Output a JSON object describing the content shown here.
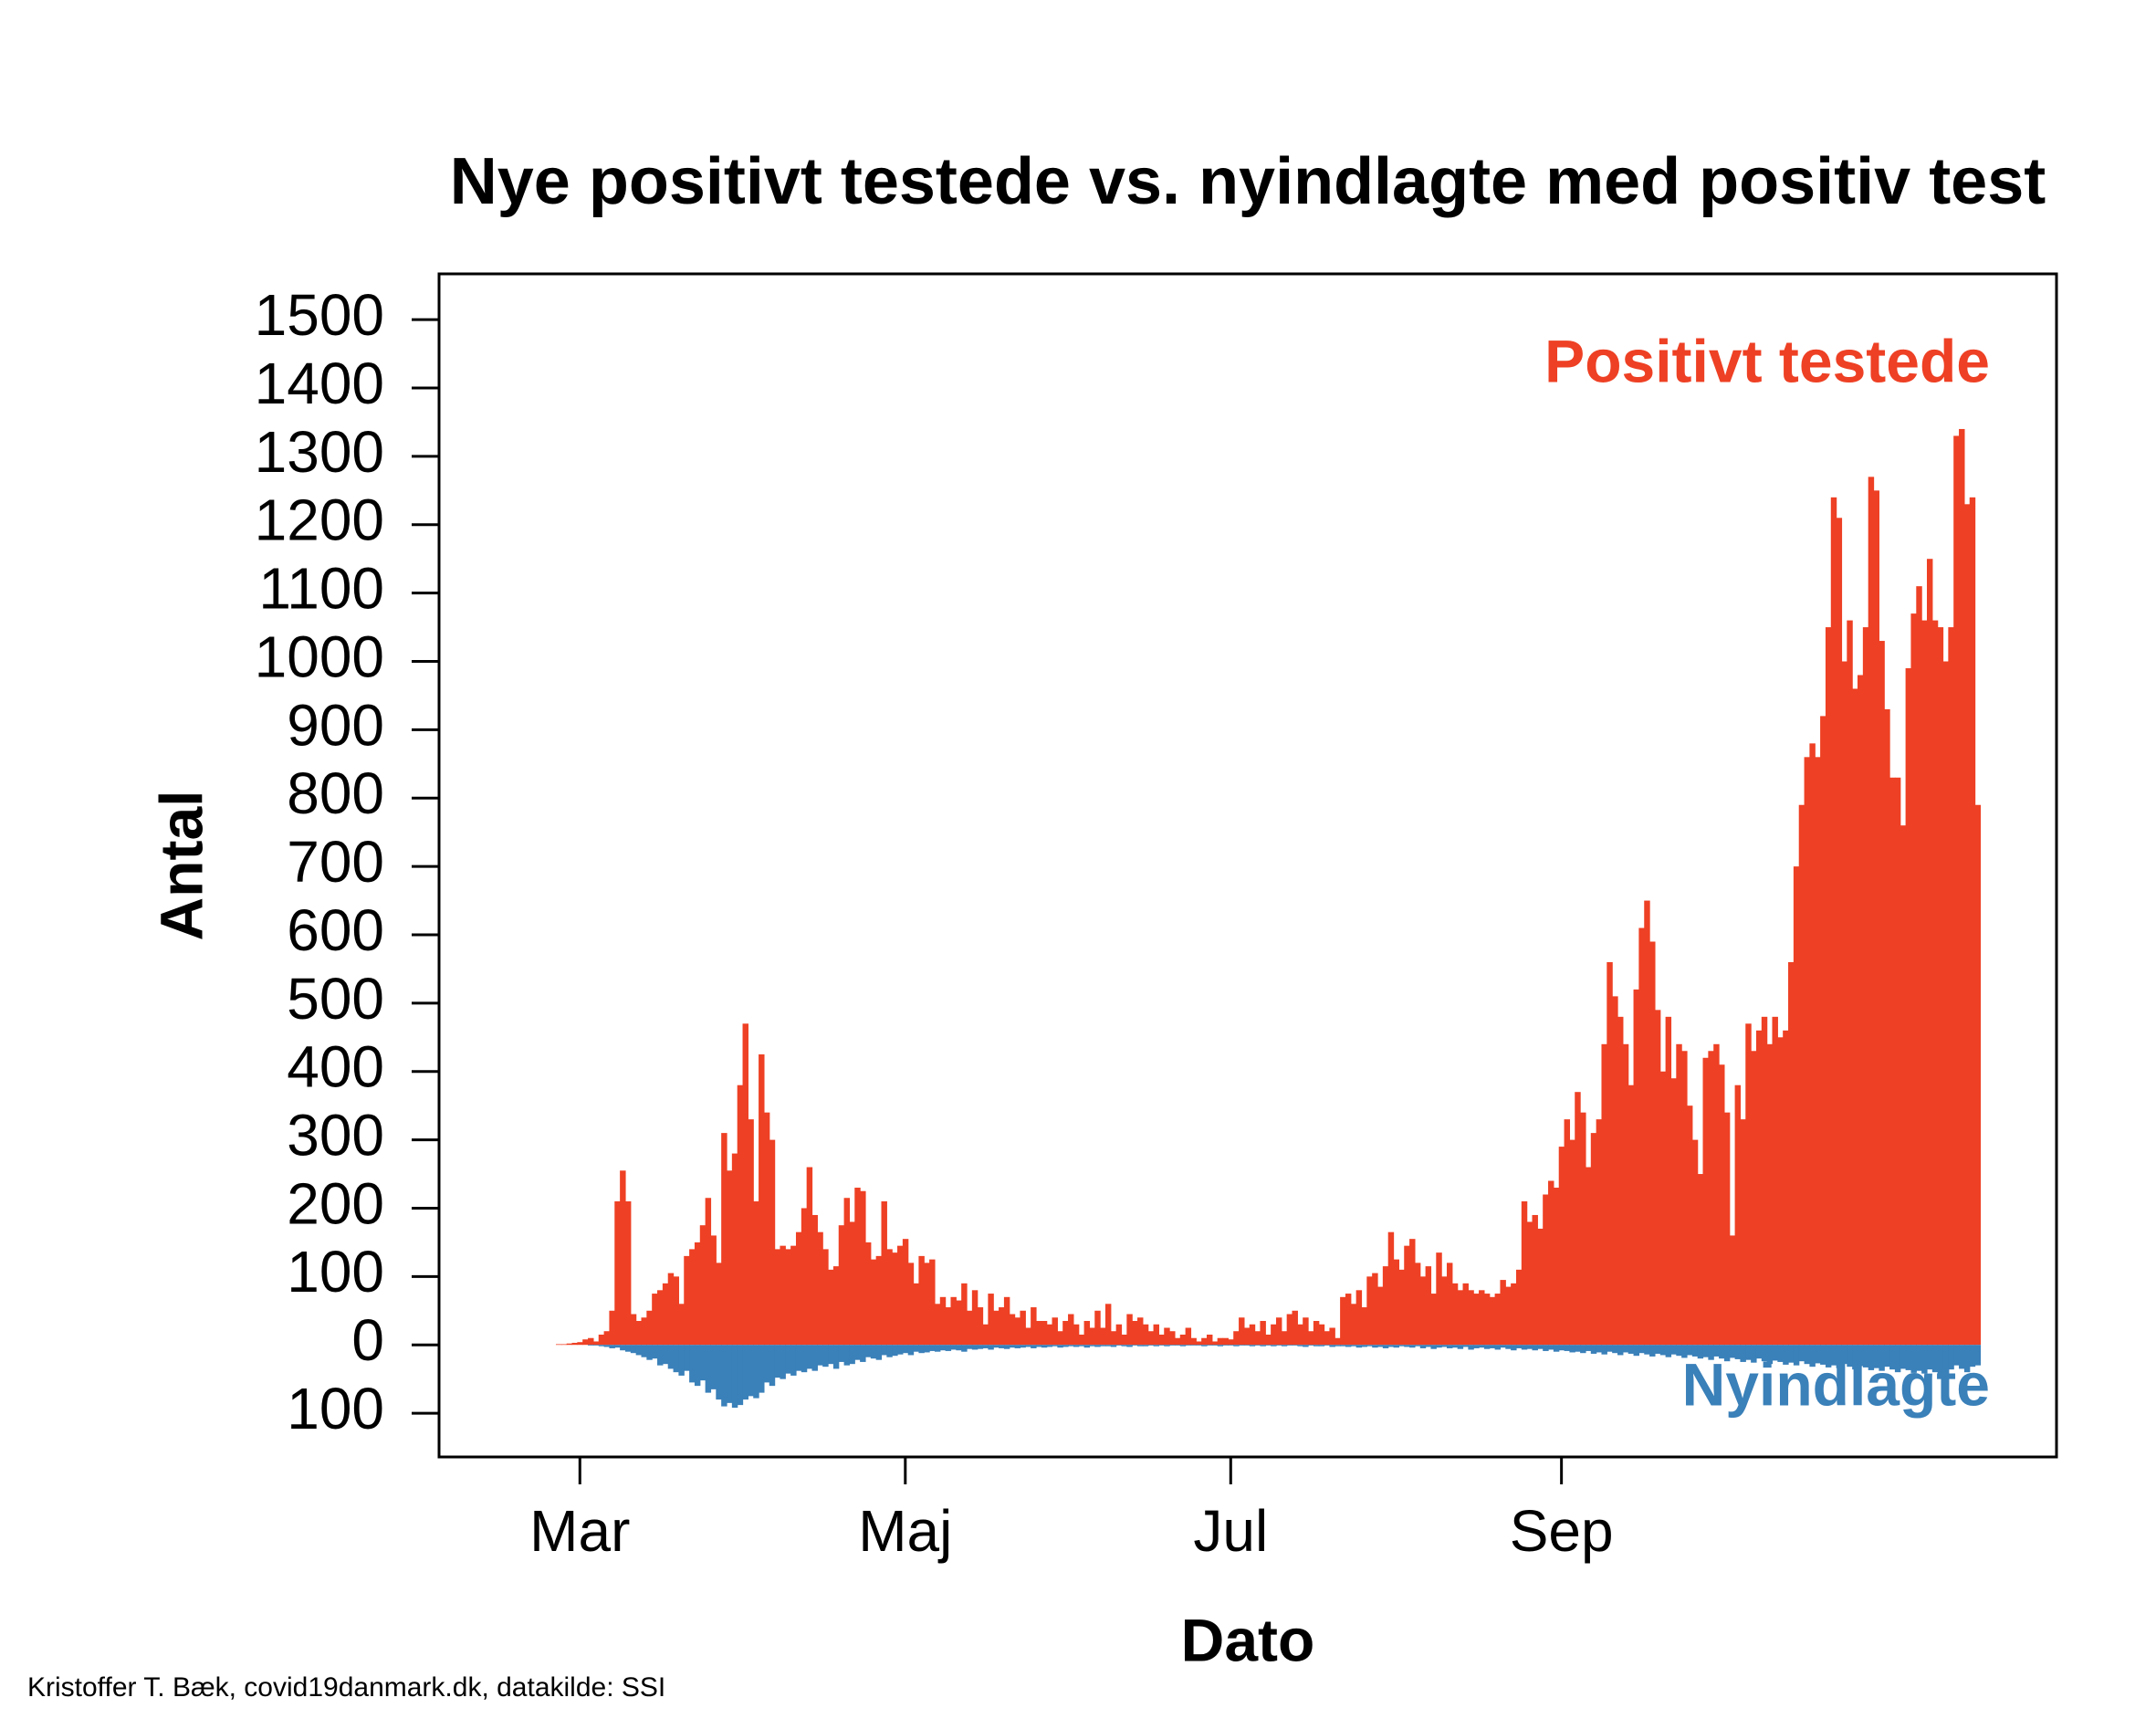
{
  "chart_data": {
    "type": "bar",
    "title": "Nye positivt testede vs. nyindlagte med positiv test",
    "x_label": "Dato",
    "y_label": "Antal",
    "caption": "Kristoffer T. Bæk, covid19danmark.dk, datakilde: SSI",
    "x": [
      57,
      58,
      59,
      60,
      61,
      62,
      63,
      64,
      65,
      66,
      67,
      68,
      69,
      70,
      71,
      72,
      73,
      74,
      75,
      76,
      77,
      78,
      79,
      80,
      81,
      82,
      83,
      84,
      85,
      86,
      87,
      88,
      89,
      90,
      91,
      92,
      93,
      94,
      95,
      96,
      97,
      98,
      99,
      100,
      101,
      102,
      103,
      104,
      105,
      106,
      107,
      108,
      109,
      110,
      111,
      112,
      113,
      114,
      115,
      116,
      117,
      118,
      119,
      120,
      121,
      122,
      123,
      124,
      125,
      126,
      127,
      128,
      129,
      130,
      131,
      132,
      133,
      134,
      135,
      136,
      137,
      138,
      139,
      140,
      141,
      142,
      143,
      144,
      145,
      146,
      147,
      148,
      149,
      150,
      151,
      152,
      153,
      154,
      155,
      156,
      157,
      158,
      159,
      160,
      161,
      162,
      163,
      164,
      165,
      166,
      167,
      168,
      169,
      170,
      171,
      172,
      173,
      174,
      175,
      176,
      177,
      178,
      179,
      180,
      181,
      182,
      183,
      184,
      185,
      186,
      187,
      188,
      189,
      190,
      191,
      192,
      193,
      194,
      195,
      196,
      197,
      198,
      199,
      200,
      201,
      202,
      203,
      204,
      205,
      206,
      207,
      208,
      209,
      210,
      211,
      212,
      213,
      214,
      215,
      216,
      217,
      218,
      219,
      220,
      221,
      222,
      223,
      224,
      225,
      226,
      227,
      228,
      229,
      230,
      231,
      232,
      233,
      234,
      235,
      236,
      237,
      238,
      239,
      240,
      241,
      242,
      243,
      244,
      245,
      246,
      247,
      248,
      249,
      250,
      251,
      252,
      253,
      254,
      255,
      256,
      257,
      258,
      259,
      260,
      261,
      262,
      263,
      264,
      265,
      266,
      267,
      268,
      269,
      270,
      271,
      272,
      273,
      274,
      275,
      276,
      277,
      278,
      279,
      280,
      281,
      282,
      283,
      284,
      285,
      286,
      287,
      288,
      289,
      290,
      291,
      292,
      293,
      294,
      295,
      296,
      297,
      298,
      299,
      300,
      301,
      302,
      303,
      304,
      305,
      306,
      307,
      308,
      309,
      310,
      311,
      312,
      313,
      314,
      315,
      316,
      317,
      318,
      319,
      320,
      321,
      322,
      323
    ],
    "series": [
      {
        "name": "Positivt testede",
        "color": "#ee4024",
        "values": [
          1,
          1,
          2,
          3,
          4,
          8,
          10,
          5,
          15,
          20,
          50,
          210,
          255,
          210,
          45,
          35,
          40,
          50,
          75,
          80,
          90,
          105,
          100,
          60,
          130,
          140,
          150,
          175,
          215,
          160,
          120,
          310,
          255,
          280,
          380,
          470,
          330,
          210,
          425,
          340,
          300,
          140,
          145,
          140,
          145,
          165,
          200,
          260,
          190,
          165,
          140,
          110,
          115,
          175,
          215,
          180,
          230,
          225,
          150,
          125,
          130,
          210,
          140,
          135,
          145,
          155,
          120,
          90,
          130,
          120,
          125,
          60,
          70,
          55,
          70,
          65,
          90,
          50,
          80,
          55,
          30,
          75,
          50,
          55,
          70,
          45,
          40,
          50,
          25,
          55,
          35,
          35,
          30,
          40,
          20,
          35,
          45,
          30,
          15,
          35,
          25,
          50,
          25,
          60,
          20,
          30,
          15,
          45,
          35,
          40,
          30,
          20,
          30,
          15,
          25,
          20,
          10,
          15,
          25,
          10,
          5,
          10,
          15,
          5,
          10,
          10,
          8,
          20,
          40,
          25,
          30,
          20,
          35,
          15,
          30,
          40,
          20,
          45,
          50,
          30,
          40,
          20,
          35,
          30,
          20,
          25,
          10,
          70,
          75,
          60,
          80,
          55,
          100,
          105,
          85,
          115,
          165,
          125,
          110,
          145,
          155,
          120,
          100,
          115,
          75,
          135,
          100,
          120,
          90,
          80,
          90,
          80,
          75,
          80,
          75,
          70,
          75,
          95,
          85,
          90,
          110,
          210,
          180,
          190,
          170,
          220,
          240,
          230,
          290,
          330,
          300,
          370,
          340,
          260,
          310,
          330,
          440,
          560,
          510,
          480,
          440,
          380,
          520,
          610,
          650,
          590,
          490,
          400,
          480,
          390,
          440,
          430,
          350,
          300,
          250,
          420,
          430,
          440,
          410,
          340,
          160,
          380,
          330,
          470,
          430,
          460,
          480,
          440,
          480,
          450,
          460,
          560,
          700,
          790,
          860,
          880,
          860,
          920,
          1050,
          1240,
          1210,
          1000,
          1060,
          960,
          980,
          1050,
          1270,
          1250,
          1030,
          930,
          830,
          830,
          760,
          990,
          1070,
          1110,
          1060,
          1150,
          1060,
          1050,
          1000,
          1050,
          1330,
          1340,
          1230,
          1240,
          790
        ]
      },
      {
        "name": "Nyindlagte",
        "color": "#3a80b9",
        "values": [
          0,
          0,
          0,
          0,
          0,
          0,
          -1,
          -1,
          -2,
          -3,
          -5,
          -4,
          -8,
          -10,
          -12,
          -15,
          -18,
          -22,
          -20,
          -30,
          -28,
          -35,
          -40,
          -45,
          -38,
          -55,
          -60,
          -52,
          -70,
          -65,
          -80,
          -90,
          -85,
          -92,
          -88,
          -80,
          -75,
          -78,
          -70,
          -55,
          -60,
          -48,
          -50,
          -42,
          -45,
          -38,
          -40,
          -35,
          -38,
          -30,
          -32,
          -28,
          -35,
          -25,
          -30,
          -28,
          -22,
          -25,
          -18,
          -20,
          -22,
          -15,
          -18,
          -16,
          -14,
          -12,
          -15,
          -10,
          -12,
          -11,
          -9,
          -10,
          -8,
          -9,
          -7,
          -8,
          -10,
          -6,
          -7,
          -6,
          -5,
          -7,
          -4,
          -5,
          -6,
          -4,
          -5,
          -4,
          -3,
          -5,
          -3,
          -4,
          -3,
          -2,
          -4,
          -3,
          -2,
          -3,
          -2,
          -4,
          -2,
          -3,
          -2,
          -2,
          -3,
          -1,
          -2,
          -3,
          -1,
          -2,
          -2,
          -1,
          -2,
          -1,
          -2,
          -1,
          -1,
          -2,
          -1,
          -1,
          -1,
          -2,
          -1,
          -1,
          -2,
          -1,
          -1,
          -2,
          -1,
          -1,
          -2,
          -1,
          -2,
          -1,
          -2,
          -1,
          -2,
          -1,
          -1,
          -2,
          -3,
          -1,
          -2,
          -2,
          -1,
          -3,
          -2,
          -2,
          -3,
          -2,
          -4,
          -3,
          -2,
          -4,
          -3,
          -5,
          -3,
          -4,
          -2,
          -3,
          -4,
          -2,
          -5,
          -3,
          -6,
          -4,
          -3,
          -5,
          -4,
          -6,
          -3,
          -7,
          -5,
          -4,
          -6,
          -5,
          -7,
          -4,
          -6,
          -8,
          -5,
          -7,
          -6,
          -8,
          -6,
          -9,
          -7,
          -10,
          -8,
          -9,
          -11,
          -10,
          -12,
          -9,
          -13,
          -11,
          -14,
          -10,
          -12,
          -15,
          -11,
          -13,
          -16,
          -12,
          -14,
          -17,
          -13,
          -15,
          -18,
          -14,
          -16,
          -19,
          -15,
          -17,
          -20,
          -18,
          -22,
          -17,
          -20,
          -24,
          -19,
          -21,
          -25,
          -22,
          -26,
          -20,
          -24,
          -28,
          -23,
          -25,
          -29,
          -26,
          -30,
          -24,
          -28,
          -32,
          -27,
          -29,
          -33,
          -30,
          -34,
          -28,
          -32,
          -36,
          -31,
          -33,
          -37,
          -34,
          -38,
          -32,
          -36,
          -40,
          -35,
          -37,
          -41,
          -38,
          -42,
          -36,
          -40,
          -44,
          -39,
          -36,
          -30,
          -35,
          -40,
          -32,
          -30
        ]
      }
    ],
    "xlim": [
      34.6,
      337.8
    ],
    "ylim": [
      -164,
      1567
    ],
    "xticks": [
      {
        "value": 61,
        "label": "Mar"
      },
      {
        "value": 122,
        "label": "Maj"
      },
      {
        "value": 183,
        "label": "Jul"
      },
      {
        "value": 245,
        "label": "Sep"
      }
    ],
    "yticks": [
      {
        "value": -100,
        "label": "100"
      },
      0,
      100,
      200,
      300,
      400,
      500,
      600,
      700,
      800,
      900,
      1000,
      1100,
      1200,
      1300,
      1400,
      1500
    ]
  }
}
